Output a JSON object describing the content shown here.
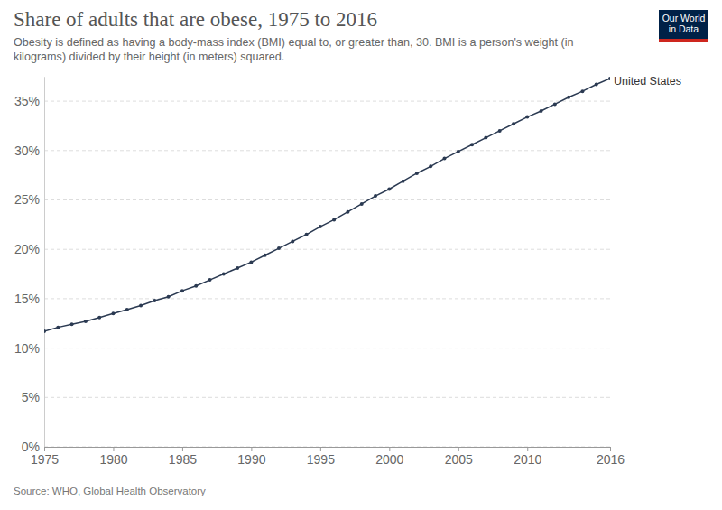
{
  "chart_data": {
    "type": "line",
    "title": "Share of adults that are obese, 1975 to 2016",
    "subtitle": [
      "Obesity is defined as having a body-mass index (BMI) equal to, or greater than, 30. BMI is a person's weight (in",
      "kilograms) divided by their height (in meters) squared."
    ],
    "source": "Source: WHO, Global Health Observatory",
    "logo": [
      "Our World",
      "in Data"
    ],
    "x": [
      1975,
      1976,
      1977,
      1978,
      1979,
      1980,
      1981,
      1982,
      1983,
      1984,
      1985,
      1986,
      1987,
      1988,
      1989,
      1990,
      1991,
      1992,
      1993,
      1994,
      1995,
      1996,
      1997,
      1998,
      1999,
      2000,
      2001,
      2002,
      2003,
      2004,
      2005,
      2006,
      2007,
      2008,
      2009,
      2010,
      2011,
      2012,
      2013,
      2014,
      2015,
      2016
    ],
    "series": [
      {
        "name": "United States",
        "color": "#2b3a52",
        "marker": "circle",
        "values": [
          11.7,
          12.1,
          12.4,
          12.7,
          13.1,
          13.5,
          13.9,
          14.3,
          14.8,
          15.2,
          15.8,
          16.3,
          16.9,
          17.5,
          18.1,
          18.7,
          19.4,
          20.1,
          20.8,
          21.5,
          22.3,
          23.0,
          23.8,
          24.6,
          25.4,
          26.1,
          26.9,
          27.7,
          28.4,
          29.2,
          29.9,
          30.6,
          31.3,
          32.0,
          32.7,
          33.4,
          34.0,
          34.7,
          35.4,
          36.0,
          36.7,
          37.3
        ]
      }
    ],
    "xlim": [
      1975,
      2016
    ],
    "xticks": [
      1975,
      1980,
      1985,
      1990,
      1995,
      2000,
      2005,
      2010,
      2016
    ],
    "ylim": [
      0,
      37.5
    ],
    "yticks": [
      {
        "value": 0,
        "label": "0%"
      },
      {
        "value": 5,
        "label": "5%"
      },
      {
        "value": 10,
        "label": "10%"
      },
      {
        "value": 15,
        "label": "15%"
      },
      {
        "value": 20,
        "label": "20%"
      },
      {
        "value": 25,
        "label": "25%"
      },
      {
        "value": 30,
        "label": "30%"
      },
      {
        "value": 35,
        "label": "35%"
      }
    ],
    "grid": true
  }
}
